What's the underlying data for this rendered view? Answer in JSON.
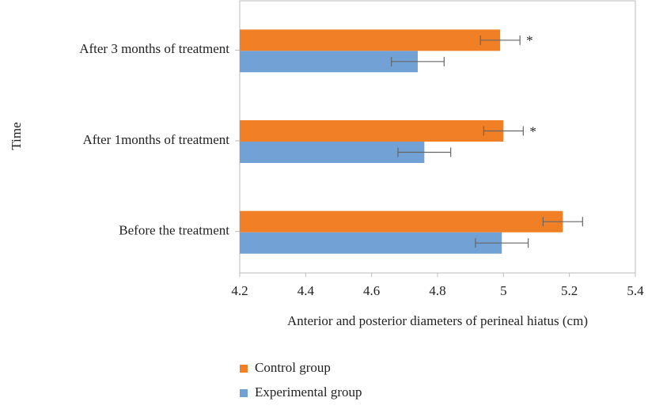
{
  "chart_data": {
    "type": "bar",
    "orientation": "horizontal",
    "xlabel": "Anterior and posterior diameters of perineal hiatus (cm)",
    "ylabel": "Time",
    "categories": [
      "After 3 months of treatment",
      "After 1months of treatment",
      "Before the treatment"
    ],
    "series": [
      {
        "name": "Control group",
        "color": "#f07f25",
        "values": [
          4.99,
          5.0,
          5.18
        ],
        "errors": [
          0.06,
          0.06,
          0.06
        ],
        "annotations": [
          "*",
          "*",
          null
        ]
      },
      {
        "name": "Experimental group",
        "color": "#72a2d5",
        "values": [
          4.74,
          4.76,
          4.995
        ],
        "errors": [
          0.08,
          0.08,
          0.08
        ]
      }
    ],
    "xlim": [
      4.2,
      5.4
    ],
    "xticks": [
      4.2,
      4.4,
      4.6,
      4.8,
      5,
      5.2,
      5.4
    ],
    "legend": "bottom"
  }
}
